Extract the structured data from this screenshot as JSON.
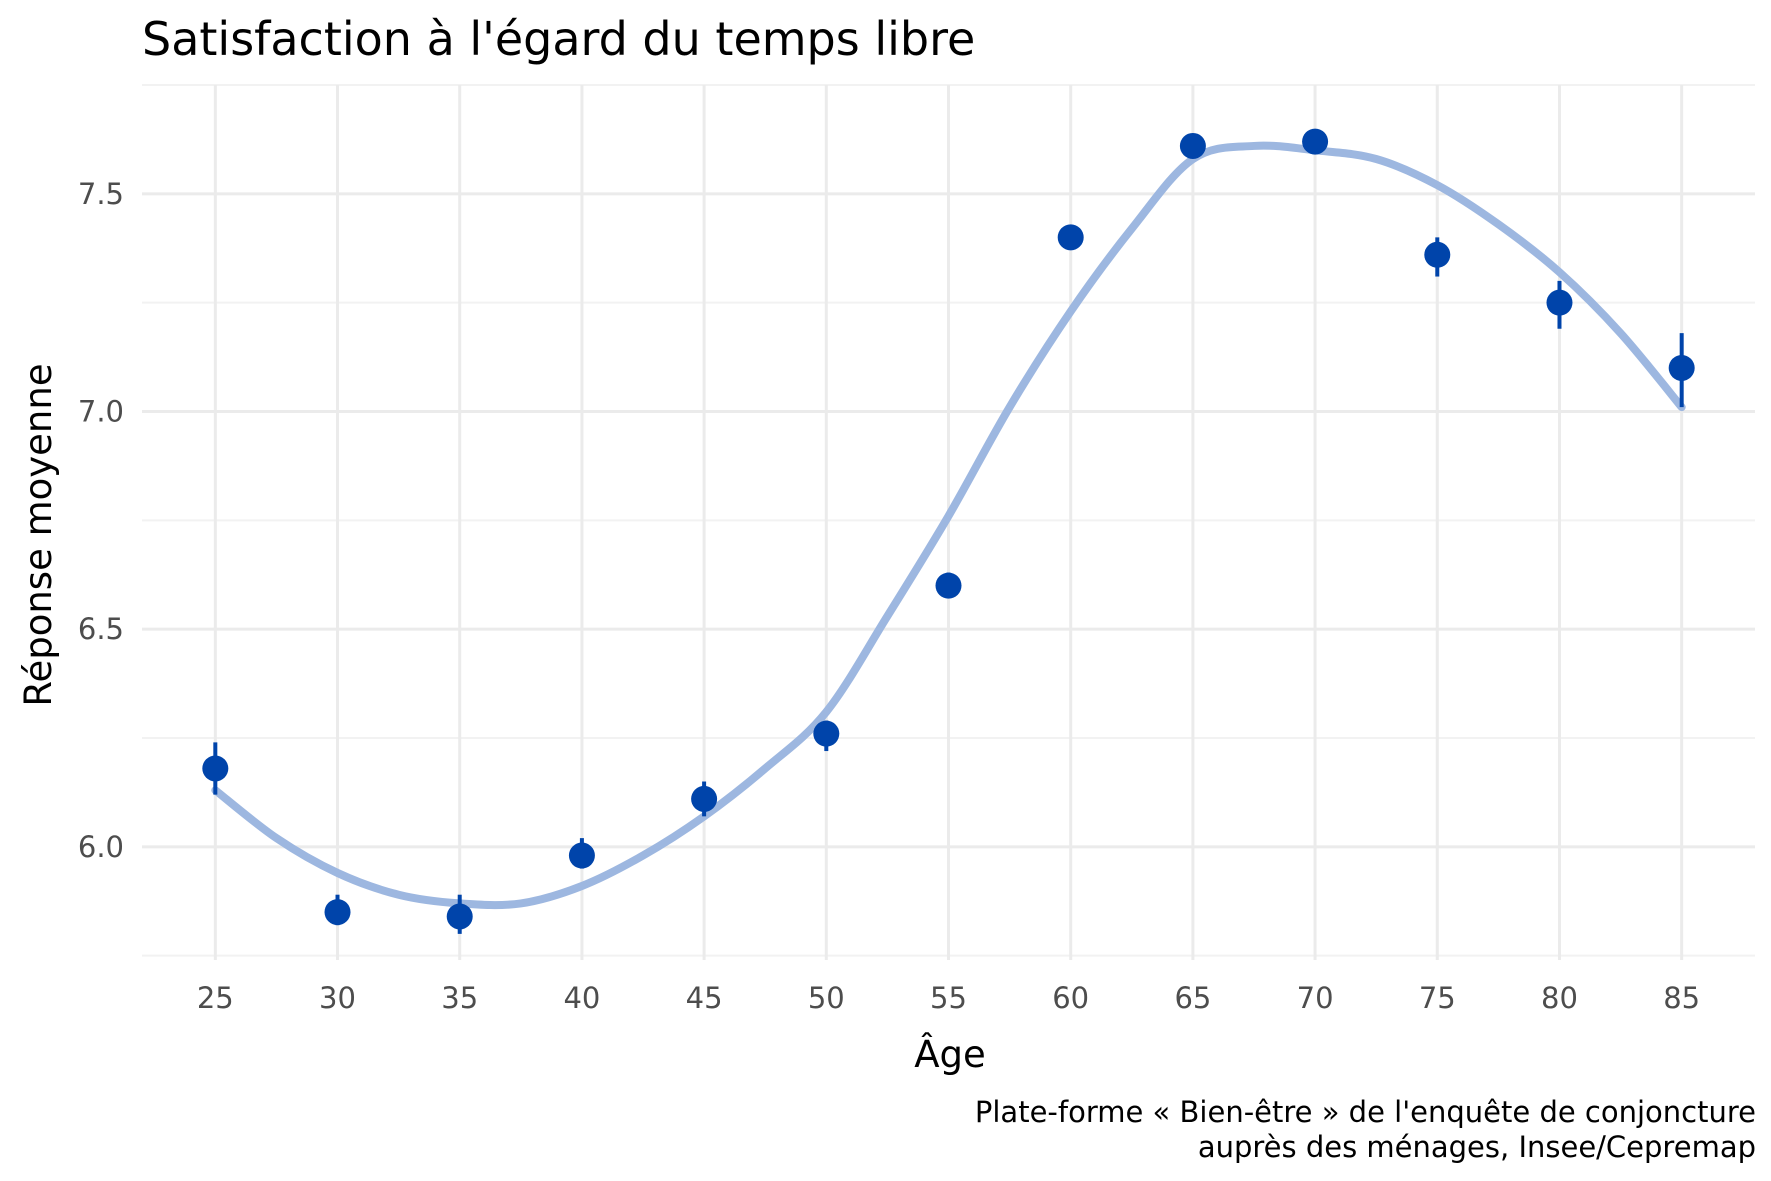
{
  "chart_data": {
    "type": "scatter",
    "title": "Satisfaction à l'égard du temps libre",
    "xlabel": "Âge",
    "ylabel": "Réponse moyenne",
    "caption_lines": [
      "Plate-forme « Bien-être » de l'enquête de conjoncture",
      "auprès des ménages, Insee/Cepremap"
    ],
    "xlim": [
      22,
      88
    ],
    "ylim": [
      5.74,
      7.75
    ],
    "x_ticks": [
      25,
      30,
      35,
      40,
      45,
      50,
      55,
      60,
      65,
      70,
      75,
      80,
      85
    ],
    "x_tick_labels": [
      "25",
      "30",
      "35",
      "40",
      "45",
      "50",
      "55",
      "60",
      "65",
      "70",
      "75",
      "80",
      "85"
    ],
    "y_ticks": [
      6.0,
      6.5,
      7.0,
      7.5
    ],
    "y_tick_labels": [
      "6.0",
      "6.5",
      "7.0",
      "7.5"
    ],
    "grid": true,
    "legend": "none",
    "series": [
      {
        "kind": "points_with_errorbars",
        "color": "#0044aa",
        "x": [
          25,
          30,
          35,
          40,
          45,
          50,
          55,
          60,
          65,
          70,
          75,
          80,
          85
        ],
        "y": [
          6.18,
          5.85,
          5.84,
          5.98,
          6.11,
          6.26,
          6.6,
          7.4,
          7.61,
          7.62,
          7.36,
          7.25,
          7.1
        ],
        "ymin": [
          6.12,
          5.82,
          5.8,
          5.95,
          6.07,
          6.22,
          6.58,
          7.38,
          7.59,
          7.6,
          7.31,
          7.19,
          7.01
        ],
        "ymax": [
          6.24,
          5.89,
          5.89,
          6.02,
          6.15,
          6.29,
          6.63,
          7.42,
          7.63,
          7.64,
          7.4,
          7.3,
          7.18
        ]
      },
      {
        "kind": "smooth_line",
        "color": "#9db7e0",
        "x": [
          25,
          27.5,
          30,
          32.5,
          35,
          37.5,
          40,
          42.5,
          45,
          47.5,
          50,
          52.5,
          55,
          57.5,
          60,
          62.5,
          65,
          67.5,
          70,
          72.5,
          75,
          77.5,
          80,
          82.5,
          85
        ],
        "y": [
          6.13,
          6.02,
          5.94,
          5.89,
          5.87,
          5.87,
          5.91,
          5.98,
          6.07,
          6.18,
          6.31,
          6.53,
          6.76,
          7.01,
          7.23,
          7.42,
          7.58,
          7.61,
          7.6,
          7.58,
          7.52,
          7.43,
          7.32,
          7.18,
          7.01
        ]
      }
    ]
  }
}
